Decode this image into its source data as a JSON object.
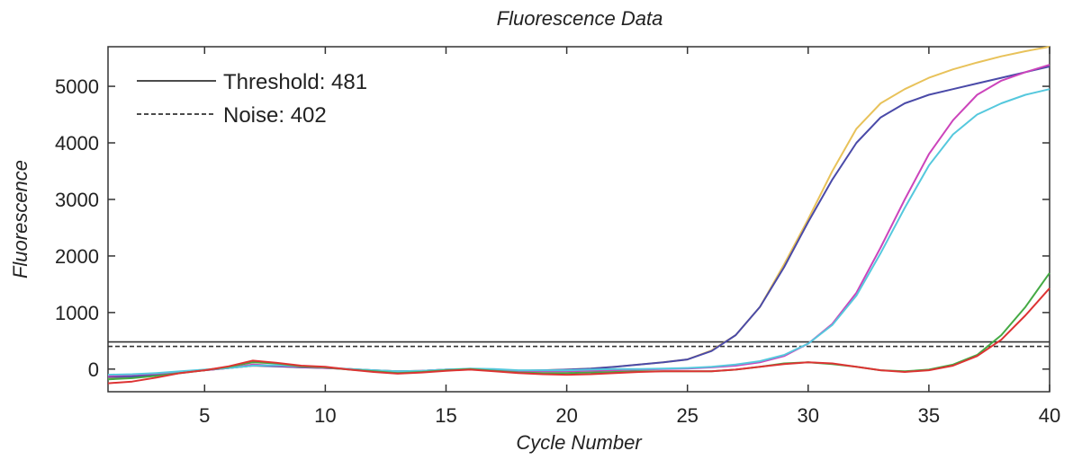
{
  "chart_data": {
    "type": "line",
    "title": "Fluorescence Data",
    "xlabel": "Cycle Number",
    "ylabel": "Fluorescence",
    "xlim": [
      1,
      40
    ],
    "ylim": [
      -400,
      5700
    ],
    "x_ticks": [
      5,
      10,
      15,
      20,
      25,
      30,
      35,
      40
    ],
    "y_ticks": [
      0,
      1000,
      2000,
      3000,
      4000,
      5000
    ],
    "grid": false,
    "legend": "top-left",
    "legend_entries": [
      "Threshold: 481",
      "Noise: 402"
    ],
    "reference_lines": [
      {
        "label": "Threshold: 481",
        "value": 481,
        "style": "solid",
        "color": "#333333"
      },
      {
        "label": "Noise: 402",
        "value": 402,
        "style": "dashed",
        "color": "#333333"
      }
    ],
    "series": [
      {
        "color": "#e8c25a",
        "x": [
          1,
          2,
          3,
          4,
          5,
          6,
          7,
          8,
          9,
          10,
          11,
          12,
          13,
          14,
          15,
          16,
          17,
          18,
          19,
          20,
          21,
          22,
          23,
          24,
          25,
          26,
          27,
          28,
          29,
          30,
          31,
          32,
          33,
          34,
          35,
          36,
          37,
          38,
          39,
          40
        ],
        "y": [
          -150,
          -140,
          -100,
          -60,
          -20,
          20,
          60,
          50,
          30,
          20,
          0,
          -20,
          -40,
          -30,
          -10,
          0,
          -20,
          -30,
          -20,
          -10,
          10,
          40,
          80,
          120,
          170,
          330,
          600,
          1100,
          1850,
          2650,
          3500,
          4250,
          4700,
          4950,
          5150,
          5300,
          5420,
          5530,
          5620,
          5700
        ]
      },
      {
        "color": "#4a4aa8",
        "x": [
          1,
          2,
          3,
          4,
          5,
          6,
          7,
          8,
          9,
          10,
          11,
          12,
          13,
          14,
          15,
          16,
          17,
          18,
          19,
          20,
          21,
          22,
          23,
          24,
          25,
          26,
          27,
          28,
          29,
          30,
          31,
          32,
          33,
          34,
          35,
          36,
          37,
          38,
          39,
          40
        ],
        "y": [
          -140,
          -130,
          -100,
          -60,
          -20,
          20,
          60,
          50,
          30,
          20,
          0,
          -20,
          -40,
          -30,
          -10,
          0,
          -20,
          -30,
          -20,
          -10,
          10,
          40,
          80,
          120,
          170,
          320,
          600,
          1100,
          1800,
          2600,
          3350,
          4000,
          4450,
          4700,
          4850,
          4950,
          5050,
          5150,
          5250,
          5350
        ]
      },
      {
        "color": "#cc44bb",
        "x": [
          1,
          2,
          3,
          4,
          5,
          6,
          7,
          8,
          9,
          10,
          11,
          12,
          13,
          14,
          15,
          16,
          17,
          18,
          19,
          20,
          21,
          22,
          23,
          24,
          25,
          26,
          27,
          28,
          29,
          30,
          31,
          32,
          33,
          34,
          35,
          36,
          37,
          38,
          39,
          40
        ],
        "y": [
          -120,
          -100,
          -80,
          -50,
          -20,
          20,
          80,
          60,
          40,
          20,
          0,
          -30,
          -50,
          -30,
          -10,
          0,
          -20,
          -40,
          -40,
          -40,
          -30,
          -20,
          -10,
          0,
          10,
          30,
          60,
          120,
          230,
          450,
          800,
          1350,
          2150,
          3000,
          3800,
          4400,
          4850,
          5100,
          5250,
          5380
        ]
      },
      {
        "color": "#55c8dd",
        "x": [
          1,
          2,
          3,
          4,
          5,
          6,
          7,
          8,
          9,
          10,
          11,
          12,
          13,
          14,
          15,
          16,
          17,
          18,
          19,
          20,
          21,
          22,
          23,
          24,
          25,
          26,
          27,
          28,
          29,
          30,
          31,
          32,
          33,
          34,
          35,
          36,
          37,
          38,
          39,
          40
        ],
        "y": [
          -100,
          -90,
          -70,
          -40,
          -10,
          20,
          60,
          70,
          50,
          30,
          0,
          -20,
          -40,
          -30,
          -10,
          10,
          0,
          -20,
          -20,
          -20,
          -10,
          0,
          0,
          10,
          20,
          40,
          80,
          140,
          250,
          450,
          780,
          1300,
          2050,
          2850,
          3600,
          4150,
          4500,
          4700,
          4850,
          4950
        ]
      },
      {
        "color": "#44aa44",
        "x": [
          1,
          2,
          3,
          4,
          5,
          6,
          7,
          8,
          9,
          10,
          11,
          12,
          13,
          14,
          15,
          16,
          17,
          18,
          19,
          20,
          21,
          22,
          23,
          24,
          25,
          26,
          27,
          28,
          29,
          30,
          31,
          32,
          33,
          34,
          35,
          36,
          37,
          38,
          39,
          40
        ],
        "y": [
          -180,
          -160,
          -120,
          -70,
          -20,
          40,
          120,
          100,
          50,
          30,
          -10,
          -40,
          -70,
          -50,
          -20,
          0,
          -30,
          -60,
          -70,
          -70,
          -60,
          -50,
          -40,
          -40,
          -40,
          -40,
          -10,
          40,
          100,
          120,
          90,
          40,
          -20,
          -40,
          -10,
          80,
          250,
          600,
          1100,
          1700
        ]
      },
      {
        "color": "#dd3333",
        "x": [
          1,
          2,
          3,
          4,
          5,
          6,
          7,
          8,
          9,
          10,
          11,
          12,
          13,
          14,
          15,
          16,
          17,
          18,
          19,
          20,
          21,
          22,
          23,
          24,
          25,
          26,
          27,
          28,
          29,
          30,
          31,
          32,
          33,
          34,
          35,
          36,
          37,
          38,
          39,
          40
        ],
        "y": [
          -250,
          -220,
          -150,
          -70,
          -20,
          50,
          150,
          110,
          60,
          40,
          -10,
          -50,
          -80,
          -60,
          -30,
          -10,
          -40,
          -70,
          -90,
          -100,
          -90,
          -70,
          -50,
          -40,
          -40,
          -40,
          -10,
          40,
          90,
          120,
          100,
          40,
          -20,
          -50,
          -20,
          60,
          230,
          520,
          950,
          1430
        ]
      }
    ]
  }
}
